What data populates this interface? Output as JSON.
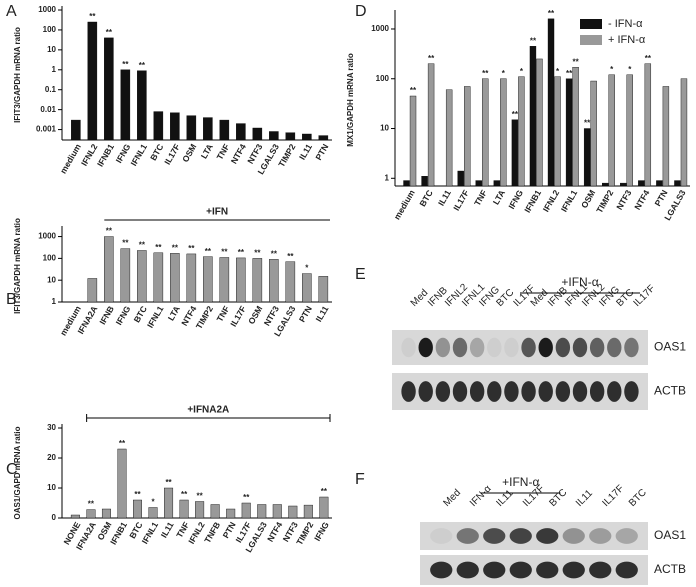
{
  "chart_data": [
    {
      "type": "bar",
      "panel": "A",
      "ylabel": "IFIT3/GAPDH mRNA ratio",
      "log": true,
      "categories": [
        "medium",
        "IFNL2",
        "IFNB1",
        "IFNG",
        "IFNL1",
        "BTC",
        "IL17F",
        "OSM",
        "LTA",
        "TNF",
        "NTF4",
        "NTF3",
        "LGALS3",
        "TIMP2",
        "IL11",
        "PTN"
      ],
      "values": [
        0.003,
        250,
        40,
        1,
        0.9,
        0.008,
        0.007,
        0.005,
        0.004,
        0.003,
        0.002,
        0.0012,
        0.0008,
        0.0007,
        0.0006,
        0.0005
      ],
      "significance": [
        null,
        "**",
        "**",
        "**",
        "**",
        null,
        null,
        null,
        null,
        null,
        null,
        null,
        null,
        null,
        null,
        null
      ],
      "color": "#111111",
      "ylim": [
        0.0003,
        1000
      ],
      "yticks": [
        0.001,
        0.01,
        0.1,
        1,
        10,
        100,
        1000
      ]
    },
    {
      "type": "bar",
      "panel": "B",
      "ylabel": "IFIT3/GAPDH mRNA ratio",
      "log": true,
      "bracket_label": "+IFN",
      "categories": [
        "medium",
        "IFNA2A",
        "IFNB",
        "IFNG",
        "BTC",
        "IFNL1",
        "LTA",
        "NTF4",
        "TIMP2",
        "TNF",
        "IL17F",
        "OSM",
        "NTF3",
        "LGALS3",
        "PTN",
        "IL11"
      ],
      "values": [
        1,
        12,
        1000,
        280,
        230,
        180,
        170,
        160,
        120,
        110,
        105,
        100,
        90,
        70,
        20,
        15
      ],
      "significance": [
        null,
        null,
        "**",
        "**",
        "**",
        "**",
        "**",
        "**",
        "**",
        "**",
        "**",
        "**",
        "**",
        "**",
        "*",
        null
      ],
      "color": "#999999",
      "ylim": [
        1,
        2000
      ],
      "yticks": [
        1,
        10,
        100,
        1000
      ]
    },
    {
      "type": "bar",
      "panel": "C",
      "ylabel": "OAS1/GAPD mRNA ratio",
      "log": false,
      "bracket_label": "+IFNA2A",
      "categories": [
        "NONE",
        "IFNA2A",
        "OSM",
        "IFNB1",
        "BTC",
        "IFNL1",
        "IL11",
        "TNF",
        "IFNL2",
        "TNFB",
        "PTN",
        "IL17F",
        "LGALS3",
        "NTF4",
        "NTF3",
        "TIMP2",
        "IFNG"
      ],
      "values": [
        1,
        2.8,
        3,
        23,
        6,
        3.5,
        10,
        6,
        5.5,
        4.5,
        3,
        5,
        4.5,
        4.5,
        4,
        4.3,
        7
      ],
      "significance": [
        null,
        "**",
        null,
        "**",
        "**",
        "*",
        "**",
        "**",
        "**",
        null,
        null,
        "**",
        null,
        null,
        null,
        null,
        "**"
      ],
      "color": "#999999",
      "ylim": [
        0,
        30
      ],
      "yticks": [
        0,
        10,
        20,
        30
      ]
    },
    {
      "type": "bar",
      "panel": "D",
      "ylabel": "MX1/GAPDH mRNA ratio",
      "log": true,
      "legend": "top-right",
      "categories": [
        "medium",
        "BTC",
        "IL11",
        "IL17F",
        "TNF",
        "LTA",
        "IFNG",
        "IFNB1",
        "IFNL2",
        "IFNL1",
        "OSM",
        "TIMP2",
        "NTF3",
        "NTF4",
        "PTN",
        "LGALS3"
      ],
      "series": [
        {
          "name": "- IFN-α",
          "color": "#111111",
          "values": [
            0.9,
            1.1,
            0.7,
            1.4,
            0.9,
            0.9,
            15,
            450,
            1600,
            100,
            10,
            0.8,
            0.8,
            0.9,
            0.9,
            0.9
          ],
          "significance": [
            null,
            null,
            null,
            null,
            null,
            null,
            "**",
            "**",
            "**",
            "**",
            "**",
            null,
            null,
            null,
            null,
            null
          ]
        },
        {
          "name": "+ IFN-α",
          "color": "#999999",
          "values": [
            45,
            200,
            60,
            70,
            100,
            100,
            110,
            250,
            110,
            170,
            90,
            120,
            120,
            200,
            70,
            100
          ],
          "significance": [
            "**",
            "**",
            null,
            null,
            "**",
            "*",
            "*",
            null,
            "*",
            "**",
            null,
            "*",
            "*",
            "**",
            null,
            null
          ]
        }
      ],
      "ylim": [
        0.7,
        2000
      ],
      "yticks": [
        1,
        10,
        100,
        1000
      ]
    }
  ],
  "blots": [
    {
      "panel": "E",
      "group_label": "+IFN-α",
      "rows": [
        "OAS1",
        "ACTB"
      ],
      "lanes": [
        "Med",
        "IFNB",
        "IFNL2",
        "IFNL1",
        "IFNG",
        "BTC",
        "IL17F",
        "Med",
        "IFNB",
        "IFNL1",
        "IFNL2",
        "IFNG",
        "BTC",
        "IL17F"
      ]
    },
    {
      "panel": "F",
      "group_label": "+IFN-α",
      "rows": [
        "OAS1",
        "ACTB"
      ],
      "lanes": [
        "Med",
        "IFN-α",
        "IL11",
        "IL17F",
        "BTC",
        "IL11",
        "IL17F",
        "BTC"
      ]
    }
  ]
}
